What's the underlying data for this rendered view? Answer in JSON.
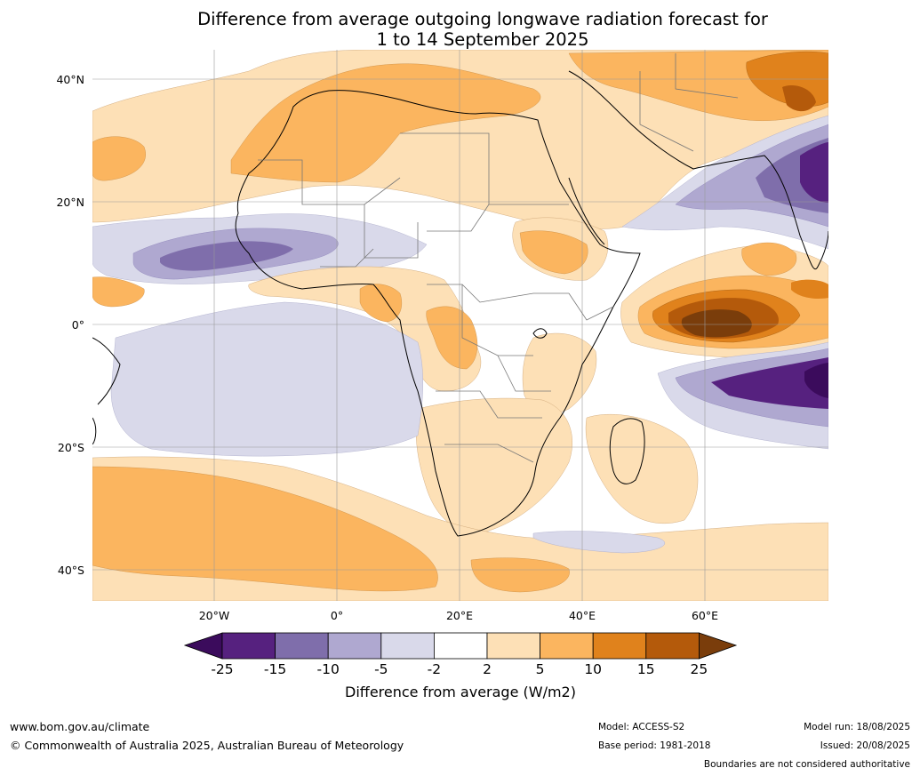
{
  "title_line1": "Difference from average outgoing longwave radiation forecast for",
  "title_line2": "1 to 14 September 2025",
  "map": {
    "lat_labels": [
      "40°N",
      "20°N",
      "0°",
      "20°S",
      "40°S"
    ],
    "lon_labels": [
      "20°W",
      "0°",
      "20°E",
      "40°E",
      "60°E"
    ]
  },
  "legend": {
    "title": "Difference from average (W/m2)",
    "ticks": [
      "-25",
      "-15",
      "-10",
      "-5",
      "-2",
      "2",
      "5",
      "10",
      "15",
      "25"
    ],
    "colors": [
      "#3b0b5c",
      "#56217f",
      "#7f6eab",
      "#afa8d0",
      "#d9d9ea",
      "#ffffff",
      "#fde0b6",
      "#fbb55f",
      "#e0821c",
      "#b45a0b",
      "#7a3d0b"
    ]
  },
  "footer": {
    "website": "www.bom.gov.au/climate",
    "copyright": "© Commonwealth of Australia 2025, Australian Bureau of Meteorology",
    "model": "Model: ACCESS-S2",
    "base_period": "Base period: 1981-2018",
    "model_run": "Model run: 18/08/2025",
    "issued": "Issued: 20/08/2025",
    "disclaimer": "Boundaries are not considered authoritative"
  }
}
